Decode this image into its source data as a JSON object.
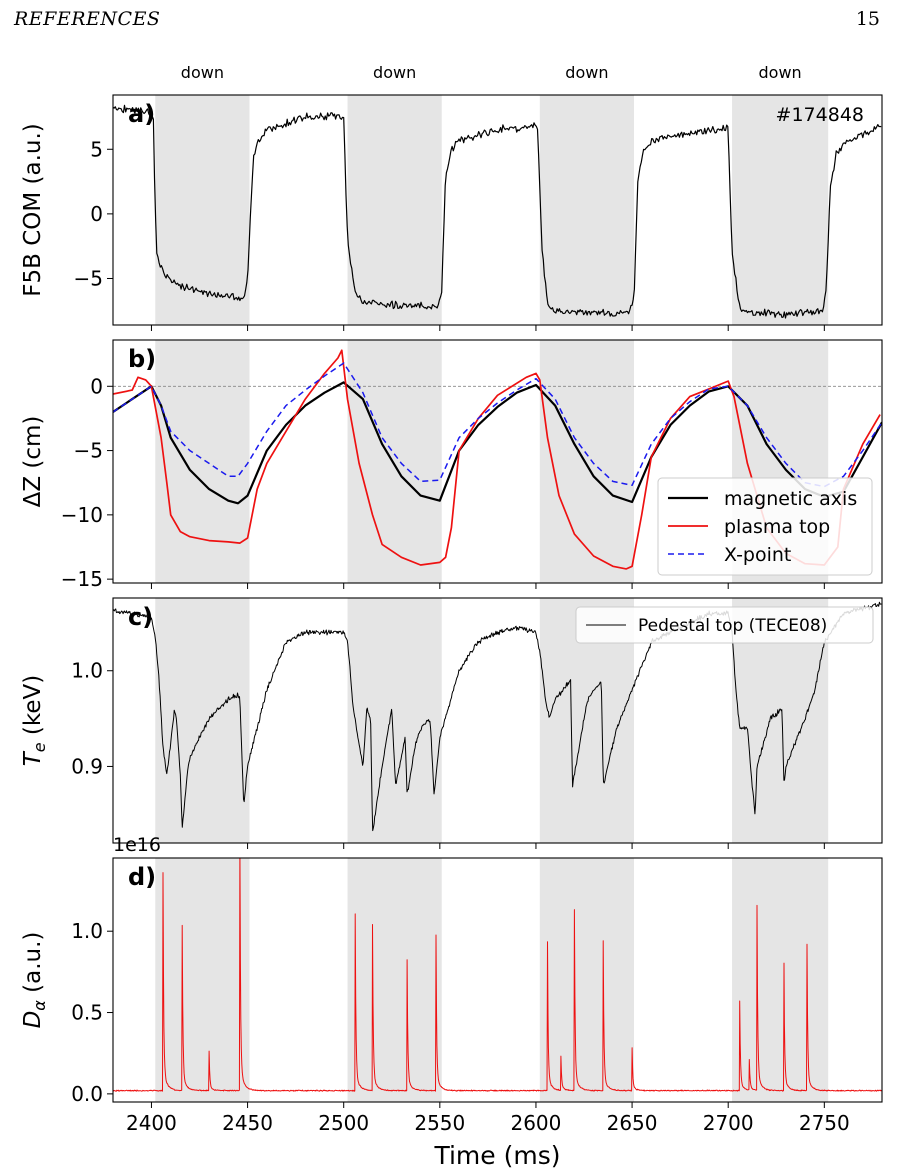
{
  "header": {
    "running_title": "REFERENCES",
    "page_number": "15"
  },
  "chart_data": [
    {
      "type": "line",
      "panel_label": "a)",
      "ylabel": "F5B COM (a.u.)",
      "annotation": "#174848",
      "ylim": [
        -8.6,
        9.2
      ],
      "yticks": [
        -5,
        0,
        5
      ],
      "ytick_labels": [
        "−5",
        "0",
        "5"
      ],
      "shaded_regions": [
        [
          2402,
          2451
        ],
        [
          2502,
          2551
        ],
        [
          2602,
          2651
        ],
        [
          2702,
          2752
        ]
      ],
      "shaded_labels": [
        "down",
        "down",
        "down",
        "down"
      ],
      "series": [
        {
          "color": "#000000",
          "width": 1.2,
          "noise": 0.35,
          "x": [
            2380,
            2395,
            2400,
            2401,
            2402,
            2403,
            2406,
            2410,
            2420,
            2440,
            2448,
            2450,
            2453,
            2456,
            2460,
            2480,
            2497,
            2499,
            2500,
            2502,
            2506,
            2510,
            2530,
            2549,
            2551,
            2553,
            2556,
            2560,
            2580,
            2600,
            2601,
            2603,
            2606,
            2610,
            2630,
            2649,
            2651,
            2653,
            2656,
            2660,
            2680,
            2699,
            2700,
            2702,
            2706,
            2710,
            2730,
            2749,
            2751,
            2753,
            2756,
            2760,
            2780
          ],
          "y": [
            8.2,
            8.0,
            7.8,
            7.4,
            0.0,
            -3.5,
            -4.5,
            -5.2,
            -5.8,
            -6.5,
            -6.4,
            -5.0,
            4.5,
            5.8,
            6.5,
            7.5,
            7.6,
            7.3,
            7.2,
            -2.0,
            -6.2,
            -6.8,
            -7.1,
            -7.2,
            -6.0,
            3.0,
            5.0,
            5.7,
            6.5,
            6.8,
            6.5,
            -2.5,
            -7.0,
            -7.5,
            -7.7,
            -7.6,
            -6.5,
            2.5,
            5.0,
            5.6,
            6.3,
            6.6,
            6.5,
            -3.0,
            -7.3,
            -7.6,
            -7.8,
            -7.5,
            -6.0,
            2.0,
            4.5,
            5.5,
            6.8
          ]
        }
      ]
    },
    {
      "type": "line",
      "panel_label": "b)",
      "ylabel": "ΔZ (cm)",
      "ylim": [
        -15.3,
        3.6
      ],
      "yticks": [
        -15,
        -10,
        -5,
        0
      ],
      "ytick_labels": [
        "−15",
        "−10",
        "−5",
        "0"
      ],
      "hline": 0,
      "shaded_regions": [
        [
          2402,
          2451
        ],
        [
          2502,
          2551
        ],
        [
          2602,
          2651
        ],
        [
          2702,
          2752
        ]
      ],
      "legend": {
        "loc": "lower-right"
      },
      "series": [
        {
          "name": "magnetic axis",
          "color": "#000000",
          "width": 2.2,
          "dash": "",
          "x": [
            2380,
            2390,
            2400,
            2405,
            2410,
            2420,
            2430,
            2440,
            2445,
            2450,
            2460,
            2470,
            2480,
            2490,
            2500,
            2510,
            2520,
            2530,
            2540,
            2550,
            2560,
            2570,
            2580,
            2590,
            2600,
            2610,
            2620,
            2630,
            2640,
            2650,
            2660,
            2670,
            2680,
            2690,
            2700,
            2710,
            2720,
            2730,
            2740,
            2750,
            2760,
            2770,
            2780
          ],
          "y": [
            -2.0,
            -1.0,
            0.0,
            -1.5,
            -4.0,
            -6.5,
            -8.0,
            -8.9,
            -9.1,
            -8.5,
            -5.0,
            -3.0,
            -1.5,
            -0.5,
            0.3,
            -1.0,
            -4.5,
            -7.0,
            -8.5,
            -8.9,
            -5.0,
            -3.0,
            -1.6,
            -0.5,
            0.1,
            -1.5,
            -4.5,
            -7.0,
            -8.5,
            -9.0,
            -5.5,
            -3.0,
            -1.5,
            -0.4,
            0.0,
            -1.5,
            -4.5,
            -6.5,
            -8.0,
            -8.6,
            -8.2,
            -5.5,
            -2.8
          ]
        },
        {
          "name": "plasma top",
          "color": "#ee1111",
          "width": 1.7,
          "dash": "",
          "x": [
            2380,
            2390,
            2393,
            2397,
            2400,
            2405,
            2408,
            2410,
            2415,
            2420,
            2430,
            2440,
            2446,
            2450,
            2455,
            2460,
            2470,
            2480,
            2490,
            2497,
            2499,
            2502,
            2508,
            2515,
            2520,
            2530,
            2540,
            2550,
            2553,
            2556,
            2560,
            2570,
            2580,
            2595,
            2600,
            2602,
            2606,
            2612,
            2620,
            2630,
            2640,
            2647,
            2650,
            2655,
            2660,
            2670,
            2680,
            2690,
            2695,
            2700,
            2703,
            2710,
            2720,
            2730,
            2740,
            2750,
            2757,
            2760,
            2770,
            2779
          ],
          "y": [
            -0.6,
            -0.3,
            0.7,
            0.5,
            0.0,
            -4.0,
            -7.5,
            -10.0,
            -11.3,
            -11.7,
            -12.0,
            -12.1,
            -12.2,
            -11.8,
            -8.0,
            -6.0,
            -3.5,
            -1.0,
            1.0,
            2.2,
            2.8,
            -1.0,
            -6.0,
            -10.0,
            -12.3,
            -13.3,
            -13.9,
            -13.7,
            -13.3,
            -11.0,
            -5.0,
            -2.5,
            -0.7,
            0.7,
            1.0,
            0.5,
            -4.0,
            -8.5,
            -11.5,
            -13.2,
            -14.0,
            -14.2,
            -14.0,
            -10.0,
            -5.5,
            -2.5,
            -0.8,
            -0.2,
            0.1,
            0.4,
            -0.8,
            -6.0,
            -11.0,
            -13.0,
            -13.8,
            -13.9,
            -12.5,
            -8.0,
            -4.5,
            -2.2
          ]
        },
        {
          "name": "X-point",
          "color": "#1a1aee",
          "width": 1.5,
          "dash": "6,4",
          "x": [
            2380,
            2390,
            2400,
            2405,
            2410,
            2420,
            2430,
            2440,
            2445,
            2450,
            2460,
            2470,
            2480,
            2490,
            2500,
            2510,
            2520,
            2530,
            2540,
            2550,
            2560,
            2570,
            2580,
            2590,
            2600,
            2610,
            2620,
            2630,
            2640,
            2650,
            2660,
            2670,
            2680,
            2690,
            2700,
            2710,
            2720,
            2730,
            2740,
            2750,
            2760,
            2770,
            2780
          ],
          "y": [
            -2.0,
            -1.0,
            0.0,
            -1.5,
            -3.5,
            -5.0,
            -6.0,
            -7.0,
            -7.0,
            -6.0,
            -3.5,
            -1.5,
            -0.3,
            0.8,
            1.8,
            -0.5,
            -4.0,
            -6.0,
            -7.4,
            -7.3,
            -4.0,
            -2.5,
            -1.3,
            -0.3,
            0.6,
            -1.0,
            -4.0,
            -6.0,
            -7.4,
            -7.7,
            -4.5,
            -2.5,
            -1.2,
            -0.2,
            0.0,
            -1.5,
            -4.0,
            -6.0,
            -7.5,
            -7.8,
            -7.0,
            -5.0,
            -2.8
          ]
        }
      ]
    },
    {
      "type": "line",
      "panel_label": "c)",
      "ylabel": "T_e (keV)",
      "ylim": [
        0.82,
        1.076
      ],
      "yticks": [
        0.9,
        1.0
      ],
      "ytick_labels": [
        "0.9",
        "1.0"
      ],
      "shaded_regions": [
        [
          2402,
          2451
        ],
        [
          2502,
          2551
        ],
        [
          2602,
          2651
        ],
        [
          2702,
          2752
        ]
      ],
      "legend": {
        "loc": "top-right"
      },
      "series": [
        {
          "name": "Pedestal top (TECE08)",
          "color": "#000000",
          "width": 1.0,
          "noise": 0.003,
          "x": [
            2380,
            2395,
            2400,
            2402,
            2404,
            2406,
            2408,
            2412,
            2413,
            2415,
            2416,
            2419,
            2420,
            2430,
            2440,
            2445,
            2446,
            2448,
            2450,
            2460,
            2470,
            2480,
            2490,
            2500,
            2502,
            2505,
            2510,
            2512,
            2514,
            2515,
            2520,
            2525,
            2527,
            2532,
            2533,
            2537,
            2540,
            2545,
            2547,
            2550,
            2560,
            2570,
            2580,
            2590,
            2600,
            2602,
            2605,
            2607,
            2610,
            2618,
            2619,
            2625,
            2627,
            2634,
            2635,
            2642,
            2646,
            2650,
            2660,
            2670,
            2680,
            2690,
            2700,
            2702,
            2704,
            2706,
            2710,
            2712,
            2714,
            2715,
            2722,
            2728,
            2729,
            2730,
            2740,
            2745,
            2750,
            2760,
            2770,
            2780
          ],
          "y": [
            1.063,
            1.058,
            1.055,
            1.035,
            0.99,
            0.92,
            0.89,
            0.96,
            0.95,
            0.89,
            0.835,
            0.9,
            0.91,
            0.95,
            0.97,
            0.975,
            0.97,
            0.86,
            0.9,
            0.98,
            1.03,
            1.04,
            1.04,
            1.04,
            1.03,
            0.96,
            0.9,
            0.96,
            0.95,
            0.83,
            0.9,
            0.96,
            0.88,
            0.93,
            0.87,
            0.92,
            0.94,
            0.95,
            0.87,
            0.93,
            1.0,
            1.03,
            1.04,
            1.045,
            1.04,
            1.02,
            0.97,
            0.95,
            0.97,
            0.99,
            0.88,
            0.95,
            0.97,
            0.99,
            0.88,
            0.94,
            0.96,
            0.98,
            1.03,
            1.04,
            1.05,
            1.06,
            1.06,
            1.04,
            0.98,
            0.94,
            0.94,
            0.89,
            0.85,
            0.9,
            0.95,
            0.96,
            0.88,
            0.9,
            0.95,
            0.98,
            1.03,
            1.06,
            1.065,
            1.07
          ]
        }
      ]
    },
    {
      "type": "line",
      "panel_label": "d)",
      "ylabel": "D_α (a.u.)",
      "offset_label": "1e16",
      "ylim": [
        -0.05,
        1.45
      ],
      "yticks": [
        0.0,
        0.5,
        1.0
      ],
      "ytick_labels": [
        "0.0",
        "0.5",
        "1.0"
      ],
      "shaded_regions": [
        [
          2402,
          2451
        ],
        [
          2502,
          2551
        ],
        [
          2602,
          2651
        ],
        [
          2702,
          2752
        ]
      ],
      "xlabel": "Time (ms)",
      "xlim": [
        2380,
        2780
      ],
      "xticks": [
        2400,
        2450,
        2500,
        2550,
        2600,
        2650,
        2700,
        2750
      ],
      "xtick_labels": [
        "2400",
        "2450",
        "2500",
        "2550",
        "2600",
        "2650",
        "2700",
        "2750"
      ],
      "series": [
        {
          "color": "#ee1111",
          "width": 1.0,
          "baseline": 0.02,
          "spikes": [
            [
              2406,
              1.22
            ],
            [
              2416,
              0.92
            ],
            [
              2430,
              0.22
            ],
            [
              2446,
              1.39
            ],
            [
              2506,
              0.99
            ],
            [
              2515,
              0.93
            ],
            [
              2533,
              0.73
            ],
            [
              2548,
              0.87
            ],
            [
              2606,
              0.83
            ],
            [
              2613,
              0.19
            ],
            [
              2620,
              1.01
            ],
            [
              2635,
              0.84
            ],
            [
              2650,
              0.24
            ],
            [
              2706,
              0.5
            ],
            [
              2711,
              0.17
            ],
            [
              2715,
              1.03
            ],
            [
              2729,
              0.71
            ],
            [
              2741,
              0.82
            ]
          ]
        }
      ]
    }
  ]
}
